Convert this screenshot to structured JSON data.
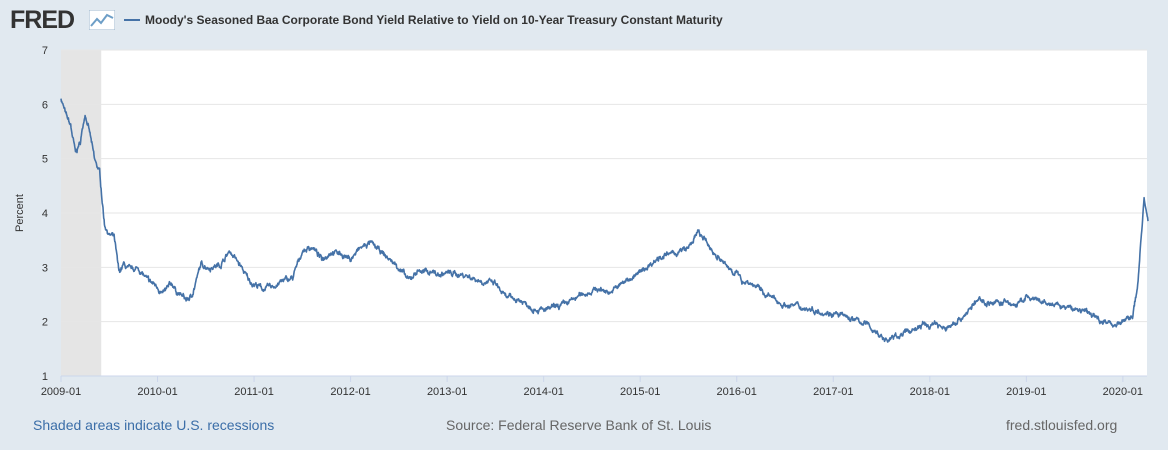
{
  "header": {
    "logo_text": "FRED",
    "logo_icon": "line-chart-icon"
  },
  "chart_data": {
    "type": "line",
    "title": "Moody's Seasoned Baa Corporate Bond Yield Relative to Yield on 10-Year Treasury Constant Maturity",
    "ylabel": "Percent",
    "xlabel": "",
    "ylim": [
      1,
      7
    ],
    "yticks": [
      1,
      2,
      3,
      4,
      5,
      6,
      7
    ],
    "xlim": [
      "2009-01",
      "2020-04"
    ],
    "xticks": [
      "2009-01",
      "2010-01",
      "2011-01",
      "2012-01",
      "2013-01",
      "2014-01",
      "2015-01",
      "2016-01",
      "2017-01",
      "2018-01",
      "2019-01",
      "2020-01"
    ],
    "grid": true,
    "recessions": [
      {
        "start": "2009-01",
        "end": "2009-06"
      }
    ],
    "series": [
      {
        "name": "Moody's Seasoned Baa Corporate Bond Yield Relative to Yield on 10-Year Treasury Constant Maturity",
        "color": "#4572a7",
        "x": [
          2009.0,
          2009.05,
          2009.1,
          2009.15,
          2009.2,
          2009.25,
          2009.3,
          2009.35,
          2009.4,
          2009.45,
          2009.5,
          2009.55,
          2009.6,
          2009.65,
          2009.7,
          2009.8,
          2009.9,
          2010.0,
          2010.05,
          2010.1,
          2010.15,
          2010.2,
          2010.3,
          2010.35,
          2010.45,
          2010.55,
          2010.65,
          2010.75,
          2010.85,
          2010.95,
          2011.0,
          2011.1,
          2011.2,
          2011.3,
          2011.4,
          2011.5,
          2011.6,
          2011.7,
          2011.8,
          2011.9,
          2012.0,
          2012.1,
          2012.2,
          2012.3,
          2012.4,
          2012.5,
          2012.6,
          2012.7,
          2012.8,
          2012.85,
          2012.9,
          2013.0,
          2013.2,
          2013.35,
          2013.5,
          2013.6,
          2013.75,
          2013.9,
          2014.0,
          2014.2,
          2014.4,
          2014.55,
          2014.7,
          2014.85,
          2015.0,
          2015.2,
          2015.35,
          2015.5,
          2015.6,
          2015.75,
          2015.9,
          2016.0,
          2016.05,
          2016.1,
          2016.2,
          2016.3,
          2016.5,
          2016.6,
          2016.7,
          2016.85,
          2017.0,
          2017.2,
          2017.35,
          2017.55,
          2017.75,
          2017.95,
          2018.0,
          2018.05,
          2018.15,
          2018.35,
          2018.5,
          2018.6,
          2018.8,
          2018.9,
          2019.0,
          2019.15,
          2019.3,
          2019.45,
          2019.6,
          2019.75,
          2019.9,
          2020.0,
          2020.05,
          2020.1,
          2020.15,
          2020.2,
          2020.22,
          2020.24,
          2020.26
        ],
        "values": [
          6.12,
          5.8,
          5.6,
          5.1,
          5.3,
          5.85,
          5.45,
          4.95,
          4.75,
          3.8,
          3.6,
          3.55,
          2.9,
          3.05,
          2.95,
          2.98,
          2.75,
          2.65,
          2.5,
          2.6,
          2.7,
          2.55,
          2.4,
          2.45,
          3.05,
          3.0,
          3.05,
          3.3,
          3.05,
          2.75,
          2.7,
          2.6,
          2.65,
          2.75,
          2.8,
          3.3,
          3.38,
          3.15,
          3.3,
          3.25,
          3.15,
          3.35,
          3.45,
          3.3,
          3.15,
          3.0,
          2.75,
          2.95,
          2.9,
          2.95,
          2.85,
          2.9,
          2.85,
          2.75,
          2.7,
          2.45,
          2.4,
          2.25,
          2.2,
          2.3,
          2.5,
          2.6,
          2.55,
          2.75,
          2.9,
          3.2,
          3.25,
          3.35,
          3.65,
          3.3,
          3.0,
          2.9,
          2.75,
          2.75,
          2.65,
          2.5,
          2.3,
          2.3,
          2.25,
          2.2,
          2.15,
          2.05,
          1.95,
          1.65,
          1.8,
          1.95,
          1.9,
          2.0,
          1.85,
          2.1,
          2.4,
          2.35,
          2.35,
          2.3,
          2.45,
          2.35,
          2.3,
          2.25,
          2.2,
          2.05,
          1.95,
          2.0,
          2.05,
          2.1,
          2.6,
          3.8,
          4.3,
          4.0,
          3.85
        ]
      }
    ]
  },
  "footer": {
    "recession_note": "Shaded areas indicate U.S. recessions",
    "source": "Source: Federal Reserve Bank of St. Louis",
    "site": "fred.stlouisfed.org"
  },
  "colors": {
    "background": "#e1e9f0",
    "plot_background": "#ffffff",
    "recession_shade": "#e5e5e5",
    "series": "#4572a7",
    "grid": "#e6e6e6",
    "link": "#3b6ea8"
  }
}
